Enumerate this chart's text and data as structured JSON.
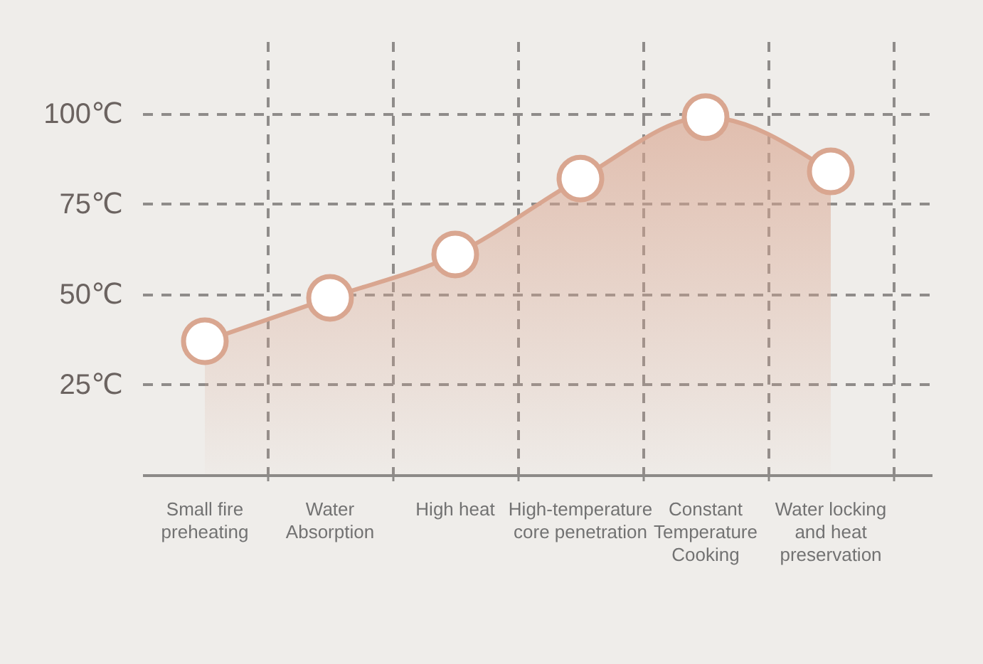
{
  "chart_data": {
    "type": "area",
    "categories": [
      "Small fire\npreheating",
      "Water\nAbsorption",
      "High heat",
      "High-temperature\ncore penetration",
      "Constant\nTemperature\nCooking",
      "Water locking\nand heat\npreservation"
    ],
    "series": [
      {
        "color": "#d9a690",
        "values": [
          37,
          49,
          61,
          82,
          99,
          84
        ]
      }
    ],
    "ylim": [
      0,
      120
    ],
    "yticks": [
      {
        "value": 25,
        "label": "25℃"
      },
      {
        "value": 50,
        "label": "50℃"
      },
      {
        "value": 75,
        "label": "75℃"
      },
      {
        "value": 100,
        "label": "100℃"
      }
    ],
    "grid": true,
    "marker": "circle"
  }
}
